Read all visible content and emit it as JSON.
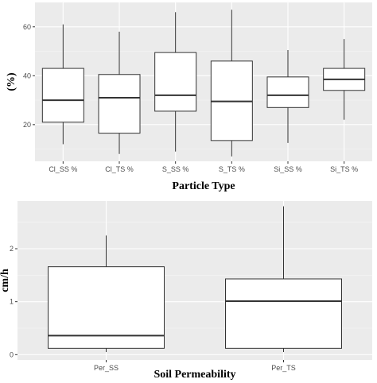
{
  "chart_data": [
    {
      "type": "box",
      "title": "",
      "xlabel": "Particle Type",
      "ylabel": "(%)",
      "ylim": [
        5,
        70
      ],
      "yticks": [
        20,
        40,
        60
      ],
      "grid": true,
      "legend": "none",
      "categories": [
        "Cl_SS %",
        "Cl_TS %",
        "S_SS %",
        "S_TS %",
        "Si_SS %",
        "Si_TS %"
      ],
      "boxes": [
        {
          "min": 12,
          "q1": 21,
          "median": 30,
          "q3": 43,
          "max": 61
        },
        {
          "min": 8,
          "q1": 16.5,
          "median": 31,
          "q3": 40.5,
          "max": 58
        },
        {
          "min": 9,
          "q1": 25.5,
          "median": 32,
          "q3": 49.5,
          "max": 66
        },
        {
          "min": 7,
          "q1": 13.5,
          "median": 29.5,
          "q3": 46,
          "max": 67
        },
        {
          "min": 12.5,
          "q1": 27,
          "median": 32,
          "q3": 39.5,
          "max": 50.5
        },
        {
          "min": 22,
          "q1": 34,
          "median": 38.5,
          "q3": 43,
          "max": 55
        }
      ]
    },
    {
      "type": "box",
      "title": "",
      "xlabel": "Soil Permeability",
      "ylabel": "cm/h",
      "ylim": [
        -0.1,
        2.9
      ],
      "yticks": [
        0,
        1,
        2
      ],
      "grid": true,
      "legend": "none",
      "categories": [
        "Per_SS",
        "Per_TS"
      ],
      "boxes": [
        {
          "min": 0.05,
          "q1": 0.12,
          "median": 0.36,
          "q3": 1.66,
          "max": 2.25
        },
        {
          "min": 0.05,
          "q1": 0.12,
          "median": 1.01,
          "q3": 1.43,
          "max": 2.8
        }
      ]
    }
  ]
}
